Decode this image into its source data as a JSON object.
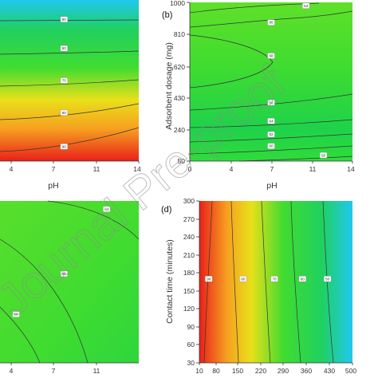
{
  "watermark": "Journal Pre-proof",
  "chart_data": [
    {
      "id": "a",
      "type": "contour",
      "panel_label": "",
      "xlabel": "pH",
      "ylabel": "",
      "x_ticks": [
        "4",
        "7",
        "11",
        "14"
      ],
      "y_ticks": [],
      "xlim": [
        1,
        14
      ],
      "ylim": [
        0,
        1
      ],
      "colors": [
        "#e8201a",
        "#f7a020",
        "#e8e01a",
        "#40dc30",
        "#20d060",
        "#20c8f0"
      ],
      "contour_labels": [
        {
          "text": "50",
          "x": 7,
          "y": 0.88
        },
        {
          "text": "60",
          "x": 7,
          "y": 0.7
        },
        {
          "text": "70",
          "x": 7,
          "y": 0.5
        },
        {
          "text": "80",
          "x": 7,
          "y": 0.3
        },
        {
          "text": "90",
          "x": 7,
          "y": 0.09
        }
      ]
    },
    {
      "id": "b",
      "type": "contour",
      "panel_label": "(b)",
      "xlabel": "pH",
      "ylabel": "Adsorbent dosage (mg)",
      "x_ticks": [
        "0",
        "4",
        "7",
        "11",
        "14"
      ],
      "y_ticks": [
        "50",
        "240",
        "430",
        "620",
        "810",
        "1000"
      ],
      "xlim": [
        0,
        14
      ],
      "ylim": [
        50,
        1000
      ],
      "colors": [
        "#30dc3a",
        "#1ed24a",
        "#40dc30",
        "#5fe02a"
      ],
      "contour_labels": [
        {
          "text": "64",
          "x": 10,
          "y": 980
        },
        {
          "text": "66",
          "x": 7,
          "y": 880
        },
        {
          "text": "68",
          "x": 7,
          "y": 680
        },
        {
          "text": "66",
          "x": 7,
          "y": 400
        },
        {
          "text": "64",
          "x": 7,
          "y": 290
        },
        {
          "text": "62",
          "x": 7,
          "y": 210
        },
        {
          "text": "60",
          "x": 7,
          "y": 140
        },
        {
          "text": "58",
          "x": 11.5,
          "y": 85
        }
      ]
    },
    {
      "id": "c",
      "type": "contour",
      "panel_label": "",
      "xlabel": "",
      "ylabel": "",
      "x_ticks": [
        "4",
        "7",
        "11"
      ],
      "y_ticks": [],
      "xlim": [
        1,
        14
      ],
      "ylim": [
        0,
        1
      ],
      "colors": [
        "#2ed63c",
        "#40dc30",
        "#58de2c"
      ],
      "contour_labels": [
        {
          "text": "64",
          "x": 11,
          "y": 0.95
        },
        {
          "text": "66",
          "x": 7,
          "y": 0.55
        },
        {
          "text": "68",
          "x": 2.5,
          "y": 0.3
        }
      ]
    },
    {
      "id": "d",
      "type": "contour",
      "panel_label": "(d)",
      "xlabel": "",
      "ylabel": "Contact time (minutes)",
      "x_ticks": [
        "10",
        "80",
        "150",
        "220",
        "290",
        "360",
        "430",
        "500"
      ],
      "y_ticks": [
        "30",
        "60",
        "90",
        "120",
        "150",
        "180",
        "210",
        "240",
        "270",
        "300"
      ],
      "xlim": [
        10,
        500
      ],
      "ylim": [
        30,
        300
      ],
      "colors": [
        "#e8201a",
        "#f7a020",
        "#e8e01a",
        "#40dc30",
        "#20d060",
        "#20c8f0"
      ],
      "contour_labels": [
        {
          "text": "90",
          "x": 40,
          "y": 170
        },
        {
          "text": "80",
          "x": 150,
          "y": 170
        },
        {
          "text": "70",
          "x": 250,
          "y": 170
        },
        {
          "text": "60",
          "x": 340,
          "y": 170
        },
        {
          "text": "50",
          "x": 420,
          "y": 170
        }
      ]
    }
  ]
}
